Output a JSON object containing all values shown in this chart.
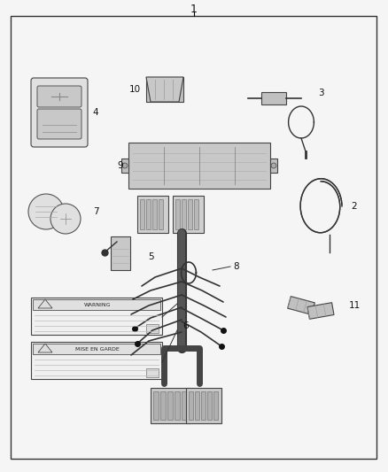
{
  "bg_color": "#f5f5f5",
  "border_color": "#222222",
  "text_color": "#111111",
  "fig_width": 4.38,
  "fig_height": 5.33,
  "dpi": 100,
  "title": "1",
  "label_fontsize": 7.5,
  "title_fontsize": 9
}
